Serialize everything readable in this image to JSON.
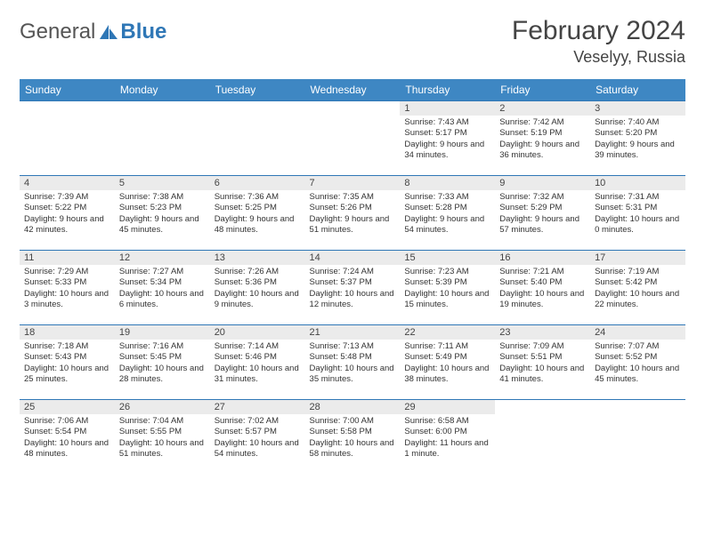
{
  "brand": {
    "text1": "General",
    "text2": "Blue",
    "accent": "#2f77b6"
  },
  "title": {
    "month": "February 2024",
    "location": "Veselyy, Russia"
  },
  "colors": {
    "headerBg": "#3e87c3",
    "rowBorder": "#2f77b6",
    "dayNumBg": "#ebebeb"
  },
  "dayNames": [
    "Sunday",
    "Monday",
    "Tuesday",
    "Wednesday",
    "Thursday",
    "Friday",
    "Saturday"
  ],
  "weeks": [
    [
      null,
      null,
      null,
      null,
      {
        "n": "1",
        "sr": "Sunrise: 7:43 AM",
        "ss": "Sunset: 5:17 PM",
        "dl": "Daylight: 9 hours and 34 minutes."
      },
      {
        "n": "2",
        "sr": "Sunrise: 7:42 AM",
        "ss": "Sunset: 5:19 PM",
        "dl": "Daylight: 9 hours and 36 minutes."
      },
      {
        "n": "3",
        "sr": "Sunrise: 7:40 AM",
        "ss": "Sunset: 5:20 PM",
        "dl": "Daylight: 9 hours and 39 minutes."
      }
    ],
    [
      {
        "n": "4",
        "sr": "Sunrise: 7:39 AM",
        "ss": "Sunset: 5:22 PM",
        "dl": "Daylight: 9 hours and 42 minutes."
      },
      {
        "n": "5",
        "sr": "Sunrise: 7:38 AM",
        "ss": "Sunset: 5:23 PM",
        "dl": "Daylight: 9 hours and 45 minutes."
      },
      {
        "n": "6",
        "sr": "Sunrise: 7:36 AM",
        "ss": "Sunset: 5:25 PM",
        "dl": "Daylight: 9 hours and 48 minutes."
      },
      {
        "n": "7",
        "sr": "Sunrise: 7:35 AM",
        "ss": "Sunset: 5:26 PM",
        "dl": "Daylight: 9 hours and 51 minutes."
      },
      {
        "n": "8",
        "sr": "Sunrise: 7:33 AM",
        "ss": "Sunset: 5:28 PM",
        "dl": "Daylight: 9 hours and 54 minutes."
      },
      {
        "n": "9",
        "sr": "Sunrise: 7:32 AM",
        "ss": "Sunset: 5:29 PM",
        "dl": "Daylight: 9 hours and 57 minutes."
      },
      {
        "n": "10",
        "sr": "Sunrise: 7:31 AM",
        "ss": "Sunset: 5:31 PM",
        "dl": "Daylight: 10 hours and 0 minutes."
      }
    ],
    [
      {
        "n": "11",
        "sr": "Sunrise: 7:29 AM",
        "ss": "Sunset: 5:33 PM",
        "dl": "Daylight: 10 hours and 3 minutes."
      },
      {
        "n": "12",
        "sr": "Sunrise: 7:27 AM",
        "ss": "Sunset: 5:34 PM",
        "dl": "Daylight: 10 hours and 6 minutes."
      },
      {
        "n": "13",
        "sr": "Sunrise: 7:26 AM",
        "ss": "Sunset: 5:36 PM",
        "dl": "Daylight: 10 hours and 9 minutes."
      },
      {
        "n": "14",
        "sr": "Sunrise: 7:24 AM",
        "ss": "Sunset: 5:37 PM",
        "dl": "Daylight: 10 hours and 12 minutes."
      },
      {
        "n": "15",
        "sr": "Sunrise: 7:23 AM",
        "ss": "Sunset: 5:39 PM",
        "dl": "Daylight: 10 hours and 15 minutes."
      },
      {
        "n": "16",
        "sr": "Sunrise: 7:21 AM",
        "ss": "Sunset: 5:40 PM",
        "dl": "Daylight: 10 hours and 19 minutes."
      },
      {
        "n": "17",
        "sr": "Sunrise: 7:19 AM",
        "ss": "Sunset: 5:42 PM",
        "dl": "Daylight: 10 hours and 22 minutes."
      }
    ],
    [
      {
        "n": "18",
        "sr": "Sunrise: 7:18 AM",
        "ss": "Sunset: 5:43 PM",
        "dl": "Daylight: 10 hours and 25 minutes."
      },
      {
        "n": "19",
        "sr": "Sunrise: 7:16 AM",
        "ss": "Sunset: 5:45 PM",
        "dl": "Daylight: 10 hours and 28 minutes."
      },
      {
        "n": "20",
        "sr": "Sunrise: 7:14 AM",
        "ss": "Sunset: 5:46 PM",
        "dl": "Daylight: 10 hours and 31 minutes."
      },
      {
        "n": "21",
        "sr": "Sunrise: 7:13 AM",
        "ss": "Sunset: 5:48 PM",
        "dl": "Daylight: 10 hours and 35 minutes."
      },
      {
        "n": "22",
        "sr": "Sunrise: 7:11 AM",
        "ss": "Sunset: 5:49 PM",
        "dl": "Daylight: 10 hours and 38 minutes."
      },
      {
        "n": "23",
        "sr": "Sunrise: 7:09 AM",
        "ss": "Sunset: 5:51 PM",
        "dl": "Daylight: 10 hours and 41 minutes."
      },
      {
        "n": "24",
        "sr": "Sunrise: 7:07 AM",
        "ss": "Sunset: 5:52 PM",
        "dl": "Daylight: 10 hours and 45 minutes."
      }
    ],
    [
      {
        "n": "25",
        "sr": "Sunrise: 7:06 AM",
        "ss": "Sunset: 5:54 PM",
        "dl": "Daylight: 10 hours and 48 minutes."
      },
      {
        "n": "26",
        "sr": "Sunrise: 7:04 AM",
        "ss": "Sunset: 5:55 PM",
        "dl": "Daylight: 10 hours and 51 minutes."
      },
      {
        "n": "27",
        "sr": "Sunrise: 7:02 AM",
        "ss": "Sunset: 5:57 PM",
        "dl": "Daylight: 10 hours and 54 minutes."
      },
      {
        "n": "28",
        "sr": "Sunrise: 7:00 AM",
        "ss": "Sunset: 5:58 PM",
        "dl": "Daylight: 10 hours and 58 minutes."
      },
      {
        "n": "29",
        "sr": "Sunrise: 6:58 AM",
        "ss": "Sunset: 6:00 PM",
        "dl": "Daylight: 11 hours and 1 minute."
      },
      null,
      null
    ]
  ]
}
